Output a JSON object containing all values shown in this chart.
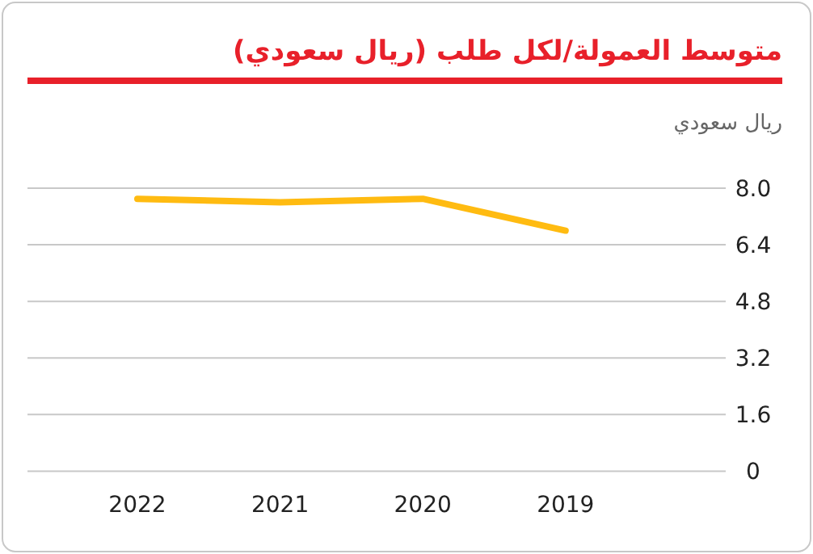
{
  "chart_data": {
    "type": "line",
    "title": "متوسط العمولة/لكل طلب (ريال سعودي)",
    "ylabel": "ريال سعودي",
    "categories": [
      "2022",
      "2021",
      "2020",
      "2019"
    ],
    "series": [
      {
        "color": "#ffbb11",
        "values": [
          7.7,
          7.6,
          7.7,
          6.8
        ]
      }
    ],
    "ylim": [
      0,
      8.0
    ],
    "yticks": [
      0,
      1.6,
      3.2,
      4.8,
      6.4,
      {
        "value": 8.0,
        "label": "8.0"
      }
    ],
    "grid": "y",
    "marker": "none",
    "line_style": "solid"
  }
}
